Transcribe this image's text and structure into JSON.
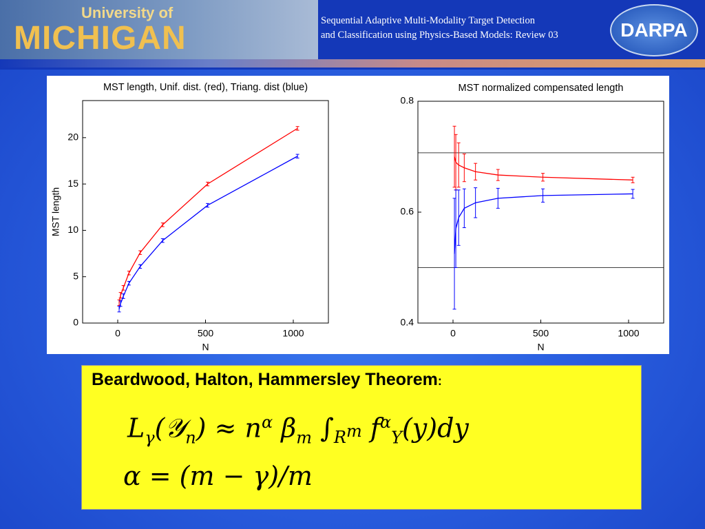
{
  "header": {
    "university_of": "University of",
    "michigan": "MICHIGAN",
    "title_lines": [
      "Sequential Adaptive Multi-Modality Target Detection",
      "and Classification using Physics-Based Models: Review 03"
    ],
    "darpa": "DARPA"
  },
  "chart_data": [
    {
      "type": "line",
      "title": "MST length, Unif. dist. (red), Triang. dist (blue)",
      "x_label": "N",
      "y_label": "MST length",
      "xlim": [
        -200,
        1200
      ],
      "xticks": [
        0,
        500,
        1000
      ],
      "ylim": [
        0,
        24
      ],
      "yticks": [
        0,
        5,
        10,
        15,
        20
      ],
      "series": [
        {
          "name": "Unif. dist.",
          "color": "#ff0000",
          "x": [
            8,
            16,
            32,
            64,
            128,
            256,
            512,
            1024
          ],
          "values": [
            2.2,
            3.0,
            3.8,
            5.4,
            7.6,
            10.6,
            15.0,
            21.0
          ],
          "errors": [
            0.3,
            0.3,
            0.25,
            0.2,
            0.2,
            0.2,
            0.2,
            0.2
          ]
        },
        {
          "name": "Triang. dist",
          "color": "#0000ff",
          "x": [
            8,
            16,
            32,
            64,
            128,
            256,
            512,
            1024
          ],
          "values": [
            1.5,
            2.1,
            2.9,
            4.3,
            6.1,
            8.9,
            12.7,
            18.0
          ],
          "errors": [
            0.3,
            0.3,
            0.25,
            0.2,
            0.2,
            0.2,
            0.2,
            0.2
          ]
        }
      ]
    },
    {
      "type": "line",
      "title": "MST normalized compensated length",
      "x_label": "N",
      "xlim": [
        -200,
        1200
      ],
      "xticks": [
        0,
        500,
        1000
      ],
      "ylim": [
        0.4,
        0.8
      ],
      "yticks": [
        0.4,
        0.6,
        0.8
      ],
      "reference_lines": [
        0.707,
        0.5
      ],
      "series": [
        {
          "name": "Unif. dist.",
          "color": "#ff0000",
          "x": [
            8,
            16,
            32,
            64,
            128,
            256,
            512,
            1024
          ],
          "values": [
            0.7,
            0.69,
            0.685,
            0.68,
            0.673,
            0.667,
            0.663,
            0.658
          ],
          "errors": [
            0.055,
            0.05,
            0.04,
            0.025,
            0.015,
            0.01,
            0.007,
            0.005
          ]
        },
        {
          "name": "Triang. dist",
          "color": "#0000ff",
          "x": [
            8,
            16,
            32,
            64,
            128,
            256,
            512,
            1024
          ],
          "values": [
            0.525,
            0.57,
            0.59,
            0.607,
            0.617,
            0.625,
            0.63,
            0.633
          ],
          "errors": [
            0.1,
            0.07,
            0.05,
            0.035,
            0.027,
            0.018,
            0.012,
            0.008
          ]
        }
      ]
    }
  ],
  "theorem": {
    "title": "Beardwood, Halton, Hammersley Theorem",
    "colon": ":",
    "formula_1": [
      "L",
      "γ",
      "(𝒴",
      "n",
      ") ≈ n",
      "α",
      "  β",
      "m",
      " ∫",
      "R",
      "m",
      " f",
      "α",
      "Y",
      "(y)dy"
    ],
    "formula_2": "α = (m − γ)/m"
  }
}
